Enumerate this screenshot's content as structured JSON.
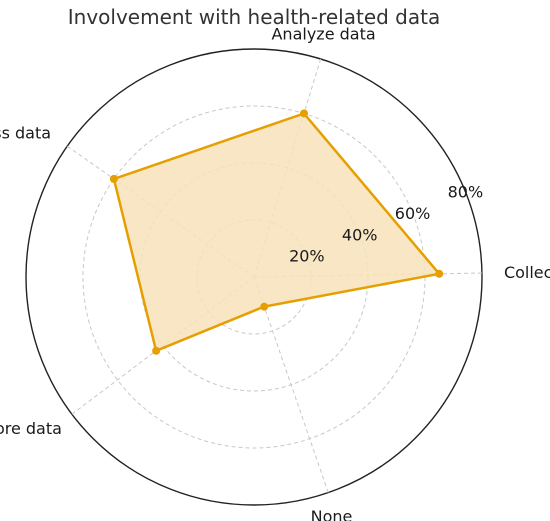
{
  "chart_data": {
    "type": "radar",
    "title": "Involvement with health-related data",
    "categories": [
      "Collect data",
      "Analyze data",
      "Access data",
      "Store data",
      "None"
    ],
    "series": [
      {
        "values": [
          65,
          60,
          60,
          43,
          11
        ]
      }
    ],
    "rlim": [
      0,
      80
    ],
    "r_ticks": [
      20,
      40,
      60,
      80
    ],
    "r_tick_labels": [
      "20%",
      "40%",
      "60%",
      "80%"
    ],
    "grid": true,
    "line_color": "#E69F00",
    "fill_color": "#F7E2BA",
    "grid_color": "#c8c8c8"
  }
}
